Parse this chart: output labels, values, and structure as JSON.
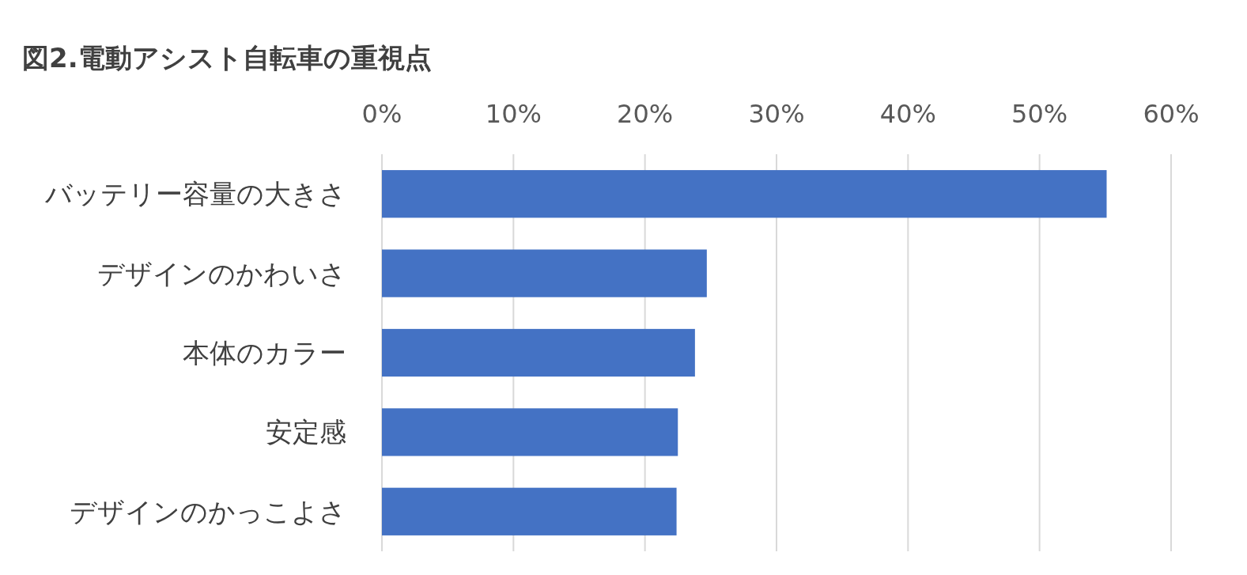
{
  "chart_data": {
    "type": "bar",
    "orientation": "horizontal",
    "title": "図2.電動アシスト自転車の重視点",
    "categories": [
      "バッテリー容量の大きさ",
      "デザインのかわいさ",
      "本体のカラー",
      "安定感",
      "デザインのかっこよさ"
    ],
    "values": [
      55.1,
      24.7,
      23.8,
      22.5,
      22.4
    ],
    "color": "#4472c4",
    "xlim": [
      0,
      60
    ],
    "xticks": [
      {
        "value": 0,
        "label": "0%"
      },
      {
        "value": 10,
        "label": "10%"
      },
      {
        "value": 20,
        "label": "20%"
      },
      {
        "value": 30,
        "label": "30%"
      },
      {
        "value": 40,
        "label": "40%"
      },
      {
        "value": 50,
        "label": "50%"
      },
      {
        "value": 60,
        "label": "60%"
      }
    ],
    "grid": "x"
  }
}
